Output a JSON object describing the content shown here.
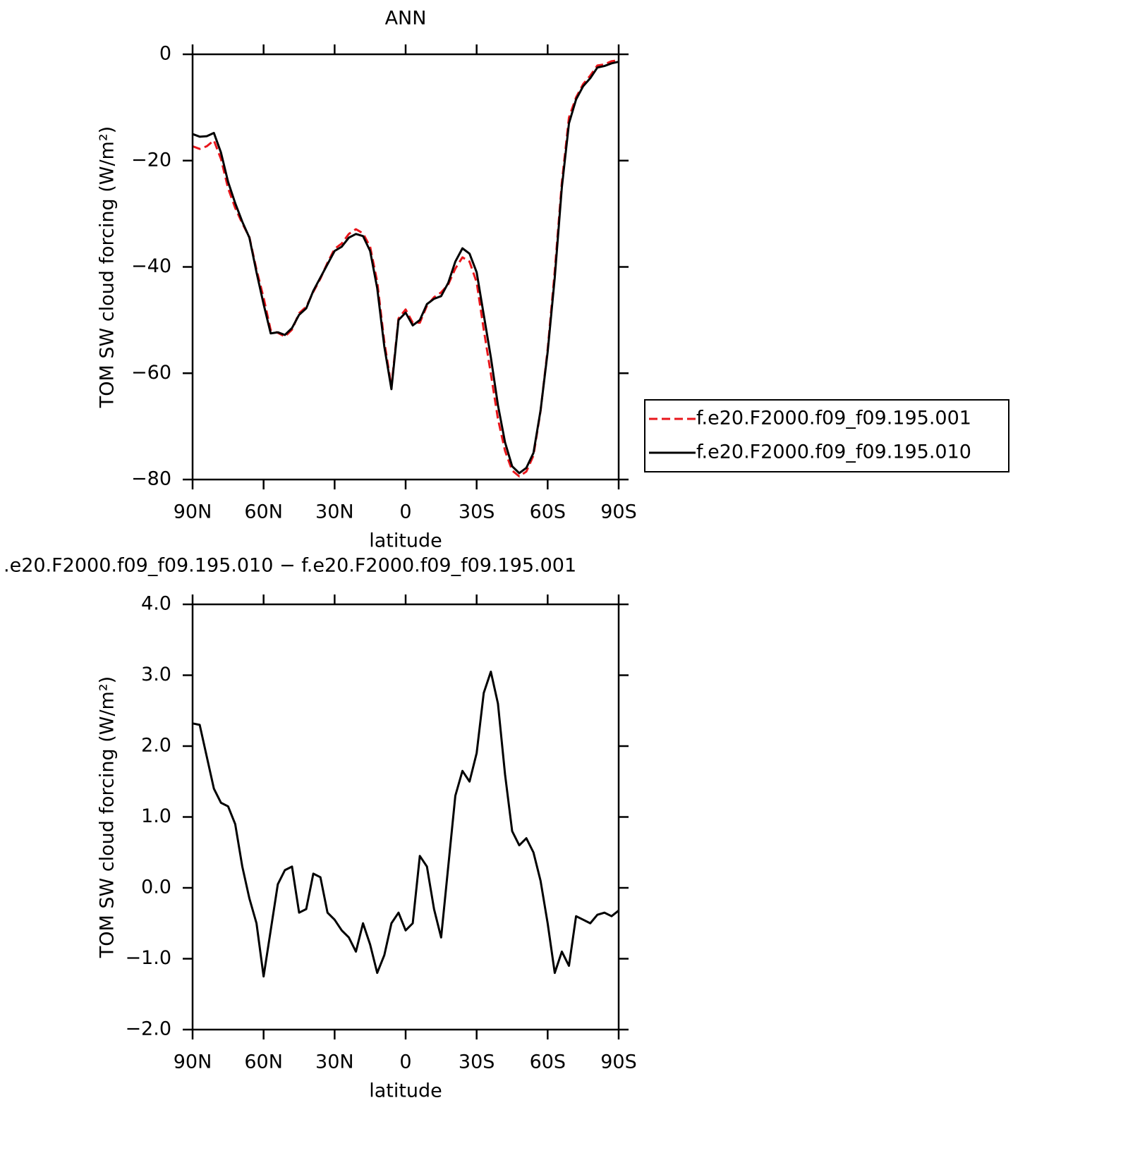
{
  "chart_data": [
    {
      "type": "line",
      "title": "ANN",
      "xlabel": "latitude",
      "ylabel": "TOM SW cloud forcing (W/m²)",
      "x": [
        90,
        87,
        84,
        81,
        78,
        75,
        72,
        69,
        66,
        63,
        60,
        57,
        54,
        51,
        48,
        45,
        42,
        39,
        36,
        33,
        30,
        27,
        24,
        21,
        18,
        15,
        12,
        9,
        6,
        3,
        0,
        -3,
        -6,
        -9,
        -12,
        -15,
        -18,
        -21,
        -24,
        -27,
        -30,
        -33,
        -36,
        -39,
        -42,
        -45,
        -48,
        -51,
        -54,
        -57,
        -60,
        -63,
        -66,
        -69,
        -72,
        -75,
        -78,
        -81,
        -84,
        -87,
        -90
      ],
      "xlim": [
        90,
        -90
      ],
      "xticks": [
        {
          "value": 90,
          "label": "90N"
        },
        {
          "value": 60,
          "label": "60N"
        },
        {
          "value": 30,
          "label": "30N"
        },
        0,
        {
          "value": -30,
          "label": "30S"
        },
        {
          "value": -60,
          "label": "60S"
        },
        {
          "value": -90,
          "label": "90S"
        }
      ],
      "ylim": [
        -80,
        0
      ],
      "yticks": [
        0,
        {
          "value": -20,
          "label": "−20"
        },
        {
          "value": -40,
          "label": "−40"
        },
        {
          "value": -60,
          "label": "−60"
        },
        {
          "value": -80,
          "label": "−80"
        }
      ],
      "legend": "outside-right",
      "series": [
        {
          "name": "f.e20.F2000.f09_f09.195.001",
          "color": "#e8161b",
          "linestyle": "dashed",
          "values": [
            -17.3,
            -17.8,
            -17.3,
            -16.2,
            -19.7,
            -25.2,
            -28.9,
            -31.8,
            -34.4,
            -40.5,
            -45.8,
            -51.9,
            -52.4,
            -53.1,
            -51.8,
            -48.7,
            -47.5,
            -44.7,
            -42.2,
            -39.2,
            -36.6,
            -35.6,
            -33.8,
            -32.9,
            -33.7,
            -36.2,
            -42.8,
            -54.1,
            -62.5,
            -49.7,
            -48.0,
            -50.5,
            -50.5,
            -47.3,
            -45.7,
            -44.8,
            -43.3,
            -40.3,
            -38.2,
            -39.0,
            -42.9,
            -51.8,
            -60.1,
            -68.6,
            -74.6,
            -78.3,
            -79.4,
            -78.5,
            -75.5,
            -67.1,
            -55.5,
            -40.8,
            -24.1,
            -11.9,
            -8.1,
            -5.6,
            -4.0,
            -2.1,
            -1.9,
            -1.3,
            -1.1
          ]
        },
        {
          "name": "f.e20.F2000.f09_f09.195.010",
          "color": "#000000",
          "linestyle": "solid",
          "values": [
            -15,
            -15.5,
            -15.4,
            -14.8,
            -18.5,
            -24,
            -28,
            -31.5,
            -34.5,
            -41,
            -47,
            -52.5,
            -52.3,
            -52.8,
            -51.5,
            -49,
            -47.8,
            -44.5,
            -42,
            -39.5,
            -37,
            -36.2,
            -34.5,
            -33.8,
            -34.2,
            -37,
            -44,
            -55,
            -63,
            -50,
            -48.6,
            -51,
            -50,
            -47,
            -46,
            -45.5,
            -43,
            -39,
            -36.5,
            -37.5,
            -41,
            -49,
            -57,
            -66,
            -73,
            -77.5,
            -78.8,
            -77.8,
            -75,
            -67,
            -56,
            -42,
            -25,
            -13,
            -8.5,
            -6,
            -4.5,
            -2.5,
            -2.2,
            -1.7,
            -1.4
          ]
        }
      ]
    },
    {
      "type": "line",
      "title": ".e20.F2000.f09_f09.195.010 − f.e20.F2000.f09_f09.195.001",
      "xlabel": "latitude",
      "ylabel": "TOM SW cloud forcing (W/m²)",
      "x": [
        90,
        87,
        84,
        81,
        78,
        75,
        72,
        69,
        66,
        63,
        60,
        57,
        54,
        51,
        48,
        45,
        42,
        39,
        36,
        33,
        30,
        27,
        24,
        21,
        18,
        15,
        12,
        9,
        6,
        3,
        0,
        -3,
        -6,
        -9,
        -12,
        -15,
        -18,
        -21,
        -24,
        -27,
        -30,
        -33,
        -36,
        -39,
        -42,
        -45,
        -48,
        -51,
        -54,
        -57,
        -60,
        -63,
        -66,
        -69,
        -72,
        -75,
        -78,
        -81,
        -84,
        -87,
        -90
      ],
      "xlim": [
        90,
        -90
      ],
      "xticks": [
        {
          "value": 90,
          "label": "90N"
        },
        {
          "value": 60,
          "label": "60N"
        },
        {
          "value": 30,
          "label": "30N"
        },
        0,
        {
          "value": -30,
          "label": "30S"
        },
        {
          "value": -60,
          "label": "60S"
        },
        {
          "value": -90,
          "label": "90S"
        }
      ],
      "ylim": [
        -2,
        4
      ],
      "yticks": [
        {
          "value": 4,
          "label": "4.0"
        },
        {
          "value": 3,
          "label": "3.0"
        },
        {
          "value": 2,
          "label": "2.0"
        },
        {
          "value": 1,
          "label": "1.0"
        },
        {
          "value": 0,
          "label": "0.0"
        },
        {
          "value": -1,
          "label": "−1.0"
        },
        {
          "value": -2,
          "label": "−2.0"
        }
      ],
      "series": [
        {
          "color": "#000000",
          "linestyle": "solid",
          "values": [
            2.32,
            2.3,
            1.85,
            1.4,
            1.2,
            1.15,
            0.9,
            0.3,
            -0.15,
            -0.5,
            -1.25,
            -0.6,
            0.05,
            0.25,
            0.3,
            -0.35,
            -0.3,
            0.2,
            0.15,
            -0.35,
            -0.45,
            -0.6,
            -0.7,
            -0.9,
            -0.5,
            -0.8,
            -1.2,
            -0.95,
            -0.5,
            -0.35,
            -0.6,
            -0.5,
            0.45,
            0.3,
            -0.3,
            -0.7,
            0.3,
            1.3,
            1.65,
            1.5,
            1.9,
            2.75,
            3.05,
            2.6,
            1.6,
            0.8,
            0.6,
            0.7,
            0.5,
            0.1,
            -0.5,
            -1.2,
            -0.9,
            -1.1,
            -0.4,
            -0.45,
            -0.5,
            -0.38,
            -0.35,
            -0.4,
            -0.32
          ]
        }
      ]
    }
  ]
}
